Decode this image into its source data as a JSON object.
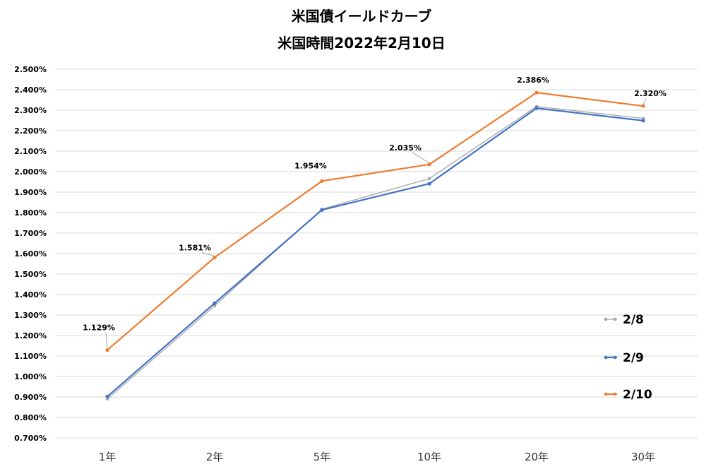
{
  "chart_data": {
    "type": "line",
    "title": "米国債イールドカーブ",
    "subtitle": "米国時間2022年2月10日",
    "categories": [
      "1年",
      "2年",
      "5年",
      "10年",
      "20年",
      "30年"
    ],
    "ylim": [
      0.7,
      2.5
    ],
    "ytick_step": 0.1,
    "ytick_format": "percent_3dp",
    "grid": true,
    "legend_position": "right",
    "series": [
      {
        "name": "2/8",
        "color": "#a5a5a5",
        "values": [
          0.89,
          1.345,
          1.817,
          1.966,
          2.318,
          2.26
        ]
      },
      {
        "name": "2/9",
        "color": "#4472c4",
        "values": [
          0.902,
          1.358,
          1.813,
          1.941,
          2.31,
          2.249
        ]
      },
      {
        "name": "2/10",
        "color": "#ed7d31",
        "values": [
          1.129,
          1.581,
          1.954,
          2.035,
          2.386,
          2.32
        ],
        "data_labels": [
          "1.129%",
          "1.581%",
          "1.954%",
          "2.035%",
          "2.386%",
          "2.320%"
        ]
      }
    ]
  }
}
